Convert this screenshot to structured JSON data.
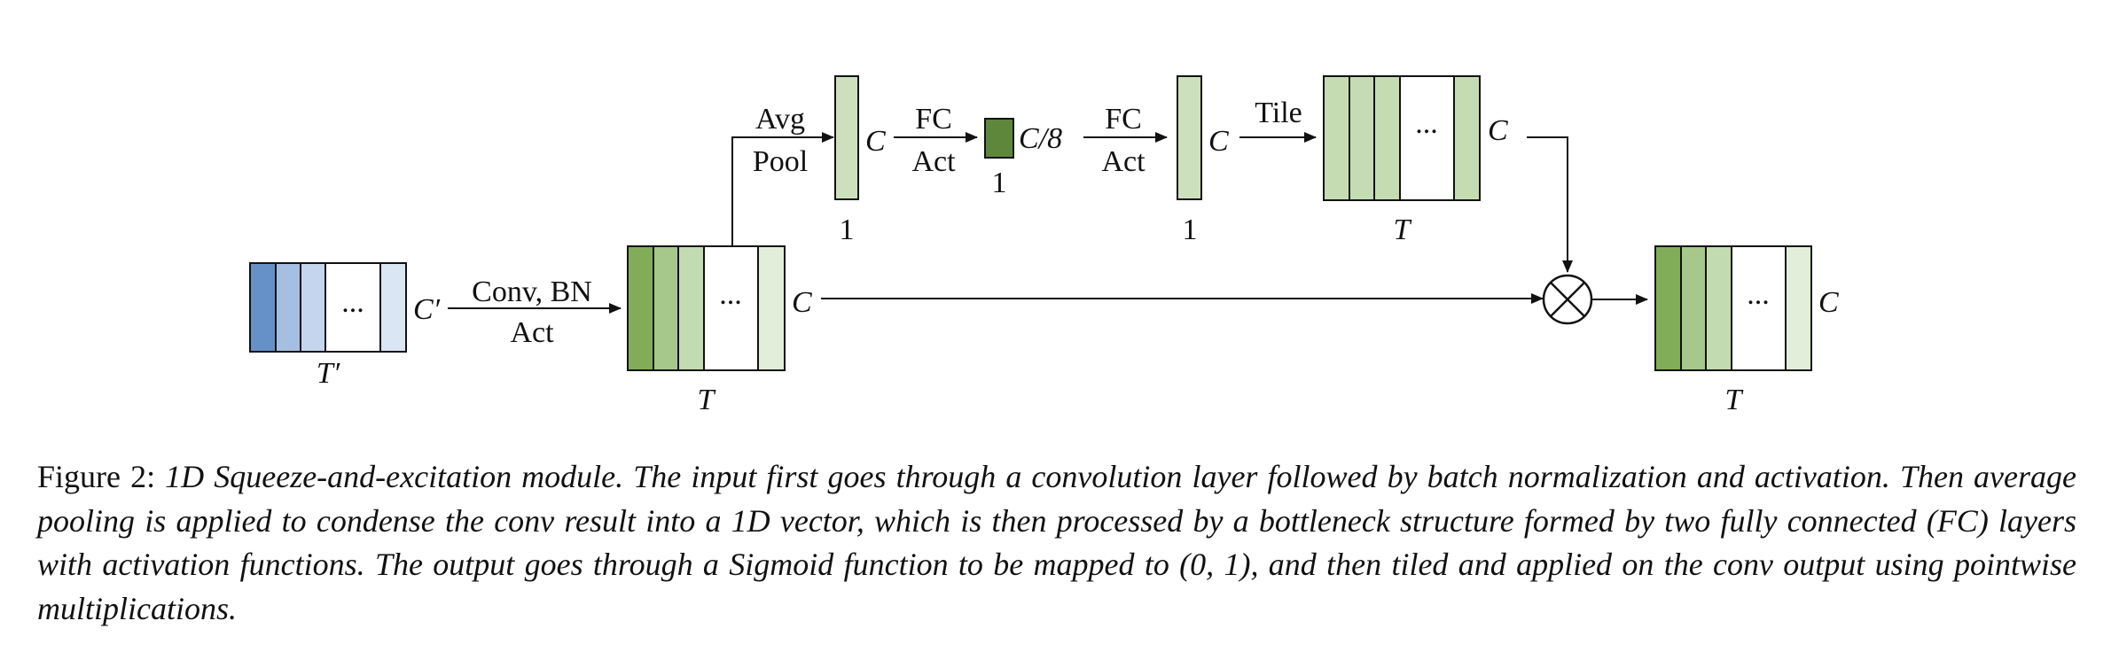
{
  "diagram": {
    "input_block": {
      "channel_label": "C′",
      "time_label": "T′",
      "colors": [
        "#6691c8",
        "#a4bfe2",
        "#c3d6ee",
        "#ffffff",
        "#dae6f4"
      ]
    },
    "conv_step": {
      "line1": "Conv, BN",
      "line2": "Act"
    },
    "conv_block": {
      "channel_label": "C",
      "time_label": "T",
      "colors": [
        "#82ad58",
        "#a6c88a",
        "#c2dbb0",
        "#ffffff",
        "#e2eed9"
      ]
    },
    "pool_step": {
      "line1": "Avg",
      "line2": "Pool"
    },
    "pooled_vector": {
      "channel_label": "C",
      "width_label": "1",
      "color": "#cde0bd"
    },
    "fc1_step": {
      "line1": "FC",
      "line2": "Act"
    },
    "bottleneck": {
      "channel_label": "C/8",
      "width_label": "1",
      "color": "#5e873c"
    },
    "fc2_step": {
      "line1": "FC",
      "line2": "Act"
    },
    "excited_vector": {
      "channel_label": "C",
      "width_label": "1",
      "color": "#cde0bd"
    },
    "tile_step": {
      "label": "Tile"
    },
    "tiled_block": {
      "channel_label": "C",
      "time_label": "T",
      "colors": [
        "#c5dcb3",
        "#c5dcb3",
        "#c5dcb3",
        "#ffffff",
        "#c5dcb3"
      ]
    },
    "output_block": {
      "channel_label": "C",
      "time_label": "T",
      "colors": [
        "#82ad58",
        "#a6c88a",
        "#c2dbb0",
        "#ffffff",
        "#e2eed9"
      ]
    },
    "ellipsis": "...",
    "multiply_symbol": "⊗"
  },
  "caption": {
    "prefix": "Figure 2: ",
    "body": "1D Squeeze-and-excitation module. The input first goes through a convolution layer followed by batch normalization and activation. Then average pooling is applied to condense the conv result into a 1D vector, which is then processed by a bottleneck structure formed by two fully connected (FC) layers with activation functions. The output goes through a Sigmoid function to be mapped to (0, 1), and then tiled and applied on the conv output using pointwise multiplications."
  }
}
